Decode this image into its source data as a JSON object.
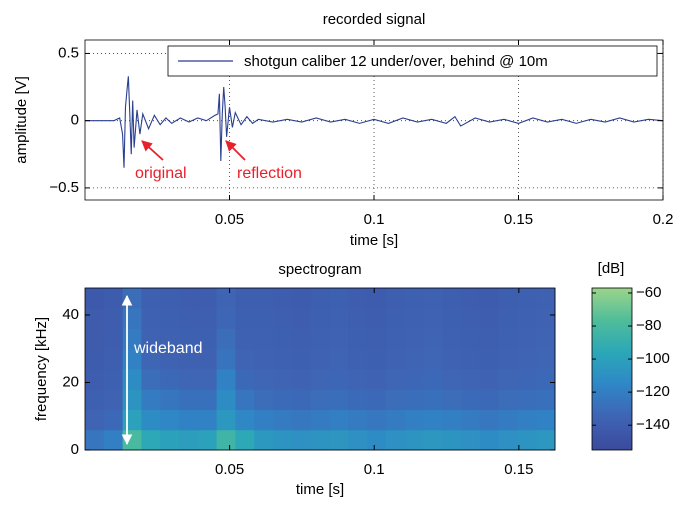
{
  "chart_data": [
    {
      "type": "line",
      "title": "recorded signal",
      "xlabel": "time [s]",
      "ylabel": "amplitude [V]",
      "x": [
        0,
        0.005,
        0.01,
        0.012,
        0.013,
        0.0135,
        0.014,
        0.0145,
        0.015,
        0.0155,
        0.016,
        0.0165,
        0.017,
        0.018,
        0.019,
        0.02,
        0.022,
        0.024,
        0.026,
        0.028,
        0.03,
        0.033,
        0.036,
        0.039,
        0.042,
        0.045,
        0.046,
        0.0465,
        0.047,
        0.0475,
        0.048,
        0.0485,
        0.049,
        0.05,
        0.051,
        0.052,
        0.054,
        0.056,
        0.058,
        0.06,
        0.065,
        0.07,
        0.075,
        0.08,
        0.085,
        0.09,
        0.095,
        0.1,
        0.105,
        0.11,
        0.115,
        0.12,
        0.125,
        0.128,
        0.13,
        0.135,
        0.14,
        0.145,
        0.15,
        0.155,
        0.16,
        0.165,
        0.17,
        0.175,
        0.18,
        0.185,
        0.19,
        0.195,
        0.2
      ],
      "series": [
        {
          "name": "shotgun caliber 12 under/over, behind @ 10m",
          "color": "#2b3f8f",
          "values": [
            0,
            0,
            0,
            0.02,
            -0.1,
            -0.35,
            0.1,
            0.22,
            0.33,
            0.05,
            -0.25,
            0.15,
            -0.2,
            0.08,
            -0.1,
            0.05,
            -0.06,
            0.04,
            -0.03,
            0.02,
            -0.02,
            0.02,
            -0.01,
            0.02,
            0,
            0.04,
            0.05,
            0.2,
            -0.3,
            0.05,
            0.25,
            0.1,
            -0.12,
            0.1,
            -0.05,
            0.06,
            -0.03,
            0.03,
            -0.02,
            0.01,
            -0.01,
            0.01,
            -0.01,
            0.02,
            -0.01,
            0.01,
            -0.02,
            0.01,
            -0.02,
            0.02,
            -0.01,
            0.01,
            -0.02,
            0.03,
            -0.04,
            0.02,
            -0.01,
            0.01,
            -0.02,
            0.02,
            -0.01,
            0.01,
            -0.02,
            0.01,
            -0.01,
            0.02,
            -0.01,
            0.01,
            0
          ]
        }
      ],
      "xlim": [
        0,
        0.2
      ],
      "ylim": [
        -0.59,
        0.6
      ],
      "xticks": [
        0.05,
        0.1,
        0.15,
        0.2
      ],
      "yticks": [
        {
          "value": -0.5,
          "label": "−0.5"
        },
        0,
        0.5
      ],
      "grid": true,
      "legend": "upper right",
      "annotations": [
        {
          "text": "original",
          "color": "#e8202a"
        },
        {
          "text": "reflection",
          "color": "#e8202a"
        }
      ]
    },
    {
      "type": "heatmap",
      "title": "spectrogram",
      "xlabel": "time [s]",
      "ylabel": "frequency [kHz]",
      "x": [
        0.00325,
        0.00975,
        0.01625,
        0.02275,
        0.02925,
        0.03575,
        0.04225,
        0.04875,
        0.05525,
        0.06175,
        0.06825,
        0.07475,
        0.08125,
        0.08775,
        0.09425,
        0.10075,
        0.10725,
        0.11375,
        0.12025,
        0.12675,
        0.13325,
        0.13975,
        0.14625,
        0.15275,
        0.15925
      ],
      "y": [
        3,
        9,
        15,
        21,
        27,
        33,
        39,
        45
      ],
      "values": [
        [
          -125,
          -120,
          -80,
          -95,
          -100,
          -102,
          -100,
          -85,
          -95,
          -105,
          -108,
          -110,
          -108,
          -107,
          -110,
          -112,
          -110,
          -108,
          -106,
          -108,
          -110,
          -112,
          -110,
          -108,
          -106
        ],
        [
          -135,
          -132,
          -100,
          -112,
          -115,
          -118,
          -118,
          -105,
          -115,
          -120,
          -122,
          -124,
          -122,
          -120,
          -122,
          -124,
          -122,
          -120,
          -118,
          -120,
          -122,
          -124,
          -122,
          -120,
          -118
        ],
        [
          -138,
          -136,
          -108,
          -122,
          -125,
          -128,
          -128,
          -112,
          -125,
          -130,
          -131,
          -132,
          -130,
          -129,
          -131,
          -132,
          -130,
          -129,
          -128,
          -130,
          -131,
          -132,
          -130,
          -129,
          -128
        ],
        [
          -140,
          -138,
          -112,
          -130,
          -132,
          -134,
          -134,
          -118,
          -132,
          -134,
          -135,
          -136,
          -134,
          -133,
          -135,
          -136,
          -134,
          -133,
          -132,
          -134,
          -135,
          -136,
          -134,
          -133,
          -132
        ],
        [
          -141,
          -139,
          -118,
          -134,
          -136,
          -137,
          -137,
          -126,
          -135,
          -136,
          -137,
          -138,
          -136,
          -135,
          -137,
          -138,
          -136,
          -135,
          -134,
          -136,
          -137,
          -138,
          -136,
          -135,
          -134
        ],
        [
          -142,
          -140,
          -122,
          -136,
          -137,
          -138,
          -138,
          -130,
          -137,
          -137,
          -138,
          -139,
          -137,
          -136,
          -138,
          -139,
          -137,
          -136,
          -135,
          -137,
          -138,
          -139,
          -137,
          -136,
          -135
        ],
        [
          -142,
          -140,
          -125,
          -137,
          -138,
          -139,
          -139,
          -133,
          -138,
          -138,
          -139,
          -140,
          -138,
          -137,
          -139,
          -140,
          -138,
          -137,
          -136,
          -138,
          -139,
          -140,
          -138,
          -137,
          -136
        ],
        [
          -143,
          -141,
          -130,
          -138,
          -139,
          -140,
          -140,
          -135,
          -139,
          -139,
          -140,
          -141,
          -139,
          -138,
          -140,
          -141,
          -139,
          -138,
          -137,
          -139,
          -140,
          -141,
          -139,
          -138,
          -137
        ]
      ],
      "xlim": [
        0,
        0.1625
      ],
      "ylim": [
        0,
        48
      ],
      "xticks": [
        0.05,
        0.1,
        0.15
      ],
      "yticks": [
        0,
        20,
        40
      ],
      "grid": false,
      "clim": [
        -155,
        -57
      ],
      "clabel": "[dB]",
      "cticks": [
        {
          "value": -60,
          "label": "−60"
        },
        {
          "value": -80,
          "label": "−80"
        },
        {
          "value": -100,
          "label": "−100"
        },
        {
          "value": -120,
          "label": "−120"
        },
        {
          "value": -140,
          "label": "−140"
        }
      ],
      "colormap": [
        "#3b4a9c",
        "#3f63b4",
        "#2f86c7",
        "#2ba7b8",
        "#4fbd9a",
        "#9cd48a"
      ],
      "annotations": [
        {
          "text": "wideband",
          "color": "#ffffff"
        }
      ]
    }
  ]
}
